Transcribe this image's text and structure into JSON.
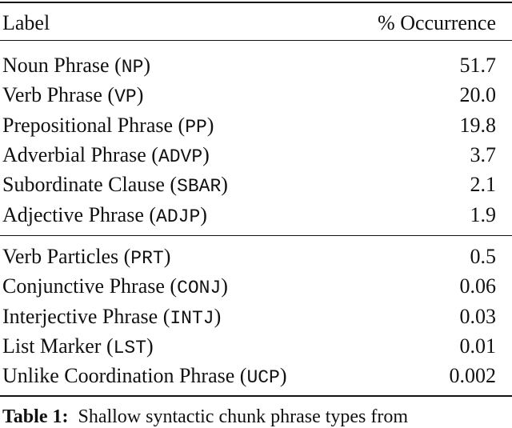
{
  "table": {
    "header": {
      "label": "Label",
      "occurrence": "% Occurrence"
    },
    "groups": [
      [
        {
          "name": "Noun Phrase (",
          "code": "NP",
          "close": ")",
          "value": "51.7"
        },
        {
          "name": "Verb Phrase (",
          "code": "VP",
          "close": ")",
          "value": "20.0"
        },
        {
          "name": "Prepositional Phrase (",
          "code": "PP",
          "close": ")",
          "value": "19.8"
        },
        {
          "name": "Adverbial Phrase (",
          "code": "ADVP",
          "close": ")",
          "value": "3.7"
        },
        {
          "name": "Subordinate Clause (",
          "code": "SBAR",
          "close": ")",
          "value": "2.1"
        },
        {
          "name": "Adjective Phrase (",
          "code": "ADJP",
          "close": ")",
          "value": "1.9"
        }
      ],
      [
        {
          "name": "Verb Particles (",
          "code": "PRT",
          "close": ")",
          "value": "0.5"
        },
        {
          "name": "Conjunctive Phrase (",
          "code": "CONJ",
          "close": ")",
          "value": "0.06"
        },
        {
          "name": "Interjective Phrase (",
          "code": "INTJ",
          "close": ")",
          "value": "0.03"
        },
        {
          "name": "List Marker (",
          "code": "LST",
          "close": ")",
          "value": "0.01"
        },
        {
          "name": "Unlike Coordination Phrase (",
          "code": "UCP",
          "close": ")",
          "value": "0.002"
        }
      ]
    ]
  },
  "caption": {
    "label": "Table 1:",
    "text": "Shallow syntactic chunk phrase types from"
  }
}
